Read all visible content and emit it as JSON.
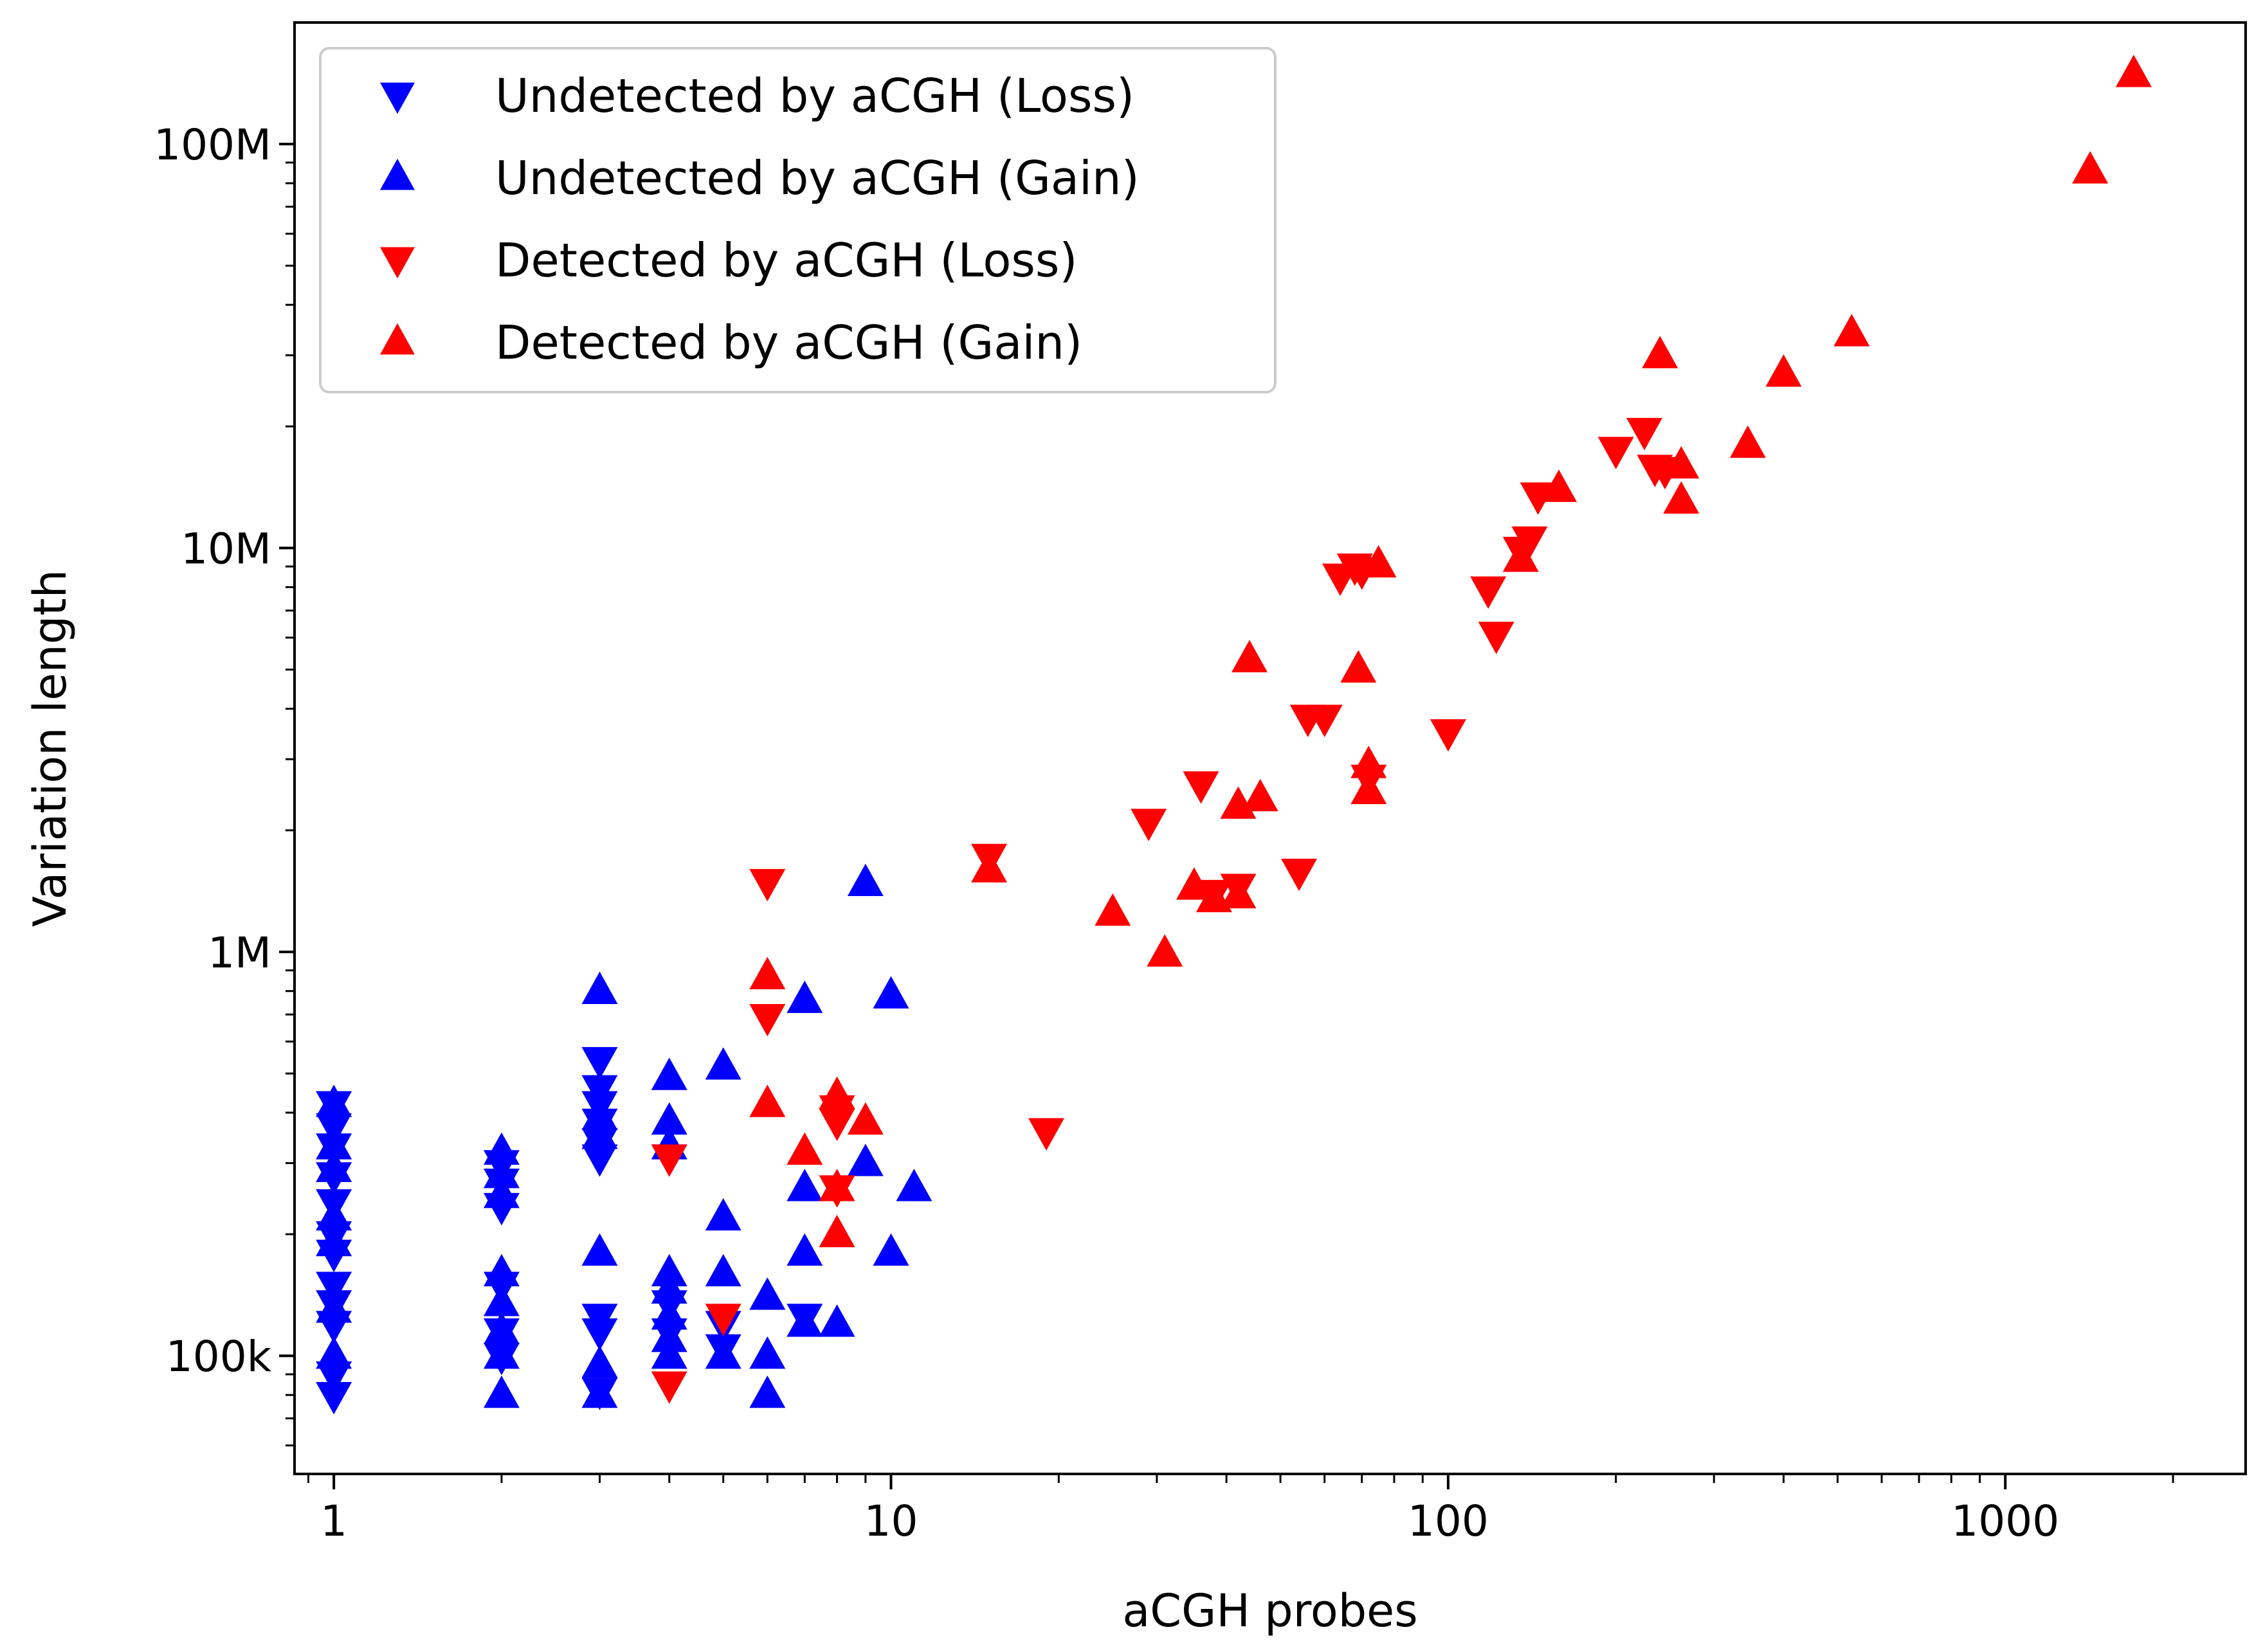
{
  "chart_data": {
    "type": "scatter",
    "title": "",
    "xlabel": "aCGH probes",
    "ylabel": "Variation length",
    "xscale": "log",
    "yscale": "log",
    "xlim": [
      0.85,
      2700
    ],
    "ylim": [
      51000,
      200000000
    ],
    "x_ticks": [
      {
        "value": 1,
        "label": "1"
      },
      {
        "value": 10,
        "label": "10"
      },
      {
        "value": 100,
        "label": "100"
      },
      {
        "value": 1000,
        "label": "1000"
      }
    ],
    "y_ticks": [
      {
        "value": 100000,
        "label": "100k"
      },
      {
        "value": 1000000,
        "label": "1M"
      },
      {
        "value": 10000000,
        "label": "10M"
      },
      {
        "value": 100000000,
        "label": "100M"
      }
    ],
    "grid": false,
    "legend_position": "top-left",
    "colors": {
      "undetected": "#0000ff",
      "detected": "#ff0000",
      "frame": "#000000",
      "background": "#ffffff"
    },
    "series": [
      {
        "name": "Undetected by aCGH (Loss)",
        "marker": "triangle-down",
        "color": "#0000ff",
        "points": [
          [
            1,
            420000
          ],
          [
            1,
            370000
          ],
          [
            1,
            330000
          ],
          [
            1,
            280000
          ],
          [
            1,
            240000
          ],
          [
            1,
            200000
          ],
          [
            1,
            180000
          ],
          [
            1,
            150000
          ],
          [
            1,
            135000
          ],
          [
            1,
            120000
          ],
          [
            1,
            90000
          ],
          [
            1,
            80000
          ],
          [
            2,
            300000
          ],
          [
            2,
            270000
          ],
          [
            2,
            235000
          ],
          [
            2,
            150000
          ],
          [
            2,
            115000
          ],
          [
            2,
            100000
          ],
          [
            3,
            540000
          ],
          [
            3,
            460000
          ],
          [
            3,
            420000
          ],
          [
            3,
            380000
          ],
          [
            3,
            340000
          ],
          [
            3,
            310000
          ],
          [
            3,
            125000
          ],
          [
            3,
            115000
          ],
          [
            3,
            82000
          ],
          [
            4,
            310000
          ],
          [
            4,
            135000
          ],
          [
            4,
            115000
          ],
          [
            5,
            120000
          ],
          [
            5,
            105000
          ],
          [
            7,
            125000
          ]
        ]
      },
      {
        "name": "Undetected by aCGH (Gain)",
        "marker": "triangle-up",
        "color": "#0000ff",
        "points": [
          [
            1,
            420000
          ],
          [
            1,
            330000
          ],
          [
            1,
            290000
          ],
          [
            1,
            220000
          ],
          [
            1,
            190000
          ],
          [
            1,
            130000
          ],
          [
            1,
            100000
          ],
          [
            2,
            320000
          ],
          [
            2,
            280000
          ],
          [
            2,
            250000
          ],
          [
            2,
            160000
          ],
          [
            2,
            135000
          ],
          [
            2,
            115000
          ],
          [
            2,
            100000
          ],
          [
            2,
            80000
          ],
          [
            3,
            800000
          ],
          [
            3,
            390000
          ],
          [
            3,
            350000
          ],
          [
            3,
            180000
          ],
          [
            3,
            95000
          ],
          [
            3,
            80000
          ],
          [
            4,
            490000
          ],
          [
            4,
            380000
          ],
          [
            4,
            330000
          ],
          [
            4,
            160000
          ],
          [
            4,
            145000
          ],
          [
            4,
            125000
          ],
          [
            4,
            110000
          ],
          [
            4,
            100000
          ],
          [
            5,
            520000
          ],
          [
            5,
            220000
          ],
          [
            5,
            160000
          ],
          [
            5,
            100000
          ],
          [
            6,
            140000
          ],
          [
            6,
            100000
          ],
          [
            6,
            80000
          ],
          [
            7,
            760000
          ],
          [
            7,
            260000
          ],
          [
            7,
            180000
          ],
          [
            7,
            120000
          ],
          [
            8,
            120000
          ],
          [
            9,
            1480000
          ],
          [
            9,
            300000
          ],
          [
            10,
            780000
          ],
          [
            10,
            180000
          ],
          [
            11,
            260000
          ]
        ]
      },
      {
        "name": "Detected by aCGH (Loss)",
        "marker": "triangle-down",
        "color": "#ff0000",
        "points": [
          [
            4,
            310000
          ],
          [
            4,
            85000
          ],
          [
            5,
            125000
          ],
          [
            6,
            1490000
          ],
          [
            6,
            690000
          ],
          [
            8,
            410000
          ],
          [
            8,
            380000
          ],
          [
            8,
            260000
          ],
          [
            15,
            1720000
          ],
          [
            19,
            360000
          ],
          [
            29,
            2100000
          ],
          [
            36,
            2600000
          ],
          [
            38,
            1400000
          ],
          [
            42,
            1450000
          ],
          [
            54,
            1580000
          ],
          [
            56,
            3800000
          ],
          [
            60,
            3800000
          ],
          [
            64,
            8500000
          ],
          [
            68,
            9000000
          ],
          [
            70,
            8800000
          ],
          [
            72,
            2700000
          ],
          [
            100,
            3500000
          ],
          [
            118,
            7900000
          ],
          [
            122,
            6100000
          ],
          [
            135,
            9900000
          ],
          [
            140,
            10500000
          ],
          [
            145,
            13500000
          ],
          [
            200,
            17500000
          ],
          [
            225,
            19500000
          ],
          [
            235,
            15800000
          ],
          [
            245,
            15600000
          ]
        ]
      },
      {
        "name": "Detected by aCGH (Gain)",
        "marker": "triangle-up",
        "color": "#ff0000",
        "points": [
          [
            6,
            870000
          ],
          [
            6,
            420000
          ],
          [
            7,
            320000
          ],
          [
            8,
            440000
          ],
          [
            8,
            260000
          ],
          [
            8,
            200000
          ],
          [
            9,
            380000
          ],
          [
            15,
            1600000
          ],
          [
            25,
            1250000
          ],
          [
            31,
            990000
          ],
          [
            35,
            1450000
          ],
          [
            38,
            1350000
          ],
          [
            42,
            2300000
          ],
          [
            42,
            1380000
          ],
          [
            44,
            5300000
          ],
          [
            46,
            2400000
          ],
          [
            69,
            5000000
          ],
          [
            72,
            2900000
          ],
          [
            72,
            2500000
          ],
          [
            75,
            9100000
          ],
          [
            135,
            9400000
          ],
          [
            158,
            14000000
          ],
          [
            240,
            30000000
          ],
          [
            262,
            16000000
          ],
          [
            262,
            13100000
          ],
          [
            345,
            18000000
          ],
          [
            400,
            27000000
          ],
          [
            530,
            34000000
          ],
          [
            1420,
            86000000
          ],
          [
            1700,
            149000000
          ]
        ]
      }
    ]
  }
}
